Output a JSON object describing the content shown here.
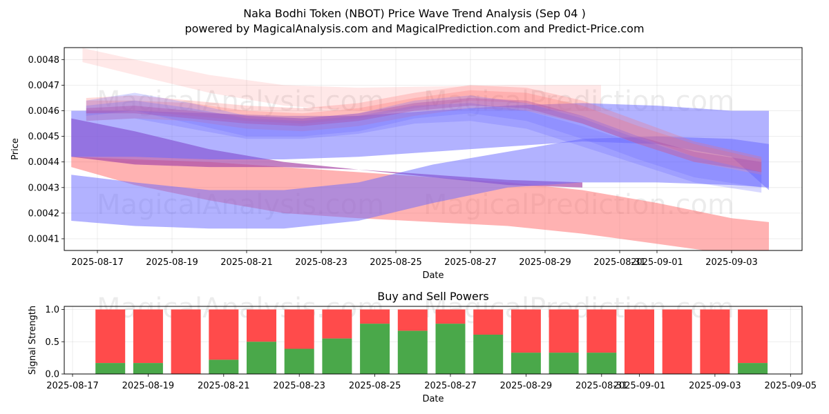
{
  "title_line1": "Naka Bodhi Token (NBOT) Price Wave Trend Analysis (Sep 04 )",
  "title_line2": "powered by MagicalAnalysis.com and MagicalPrediction.com and Predict-Price.com",
  "watermarks": [
    "MagicalAnalysis.com",
    "MagicalPrediction.com"
  ],
  "colors": {
    "buy": "#4aa84a",
    "sell": "#ff4b4b",
    "blue_wave": "#6666ff",
    "red_wave": "#ff6666"
  },
  "chart_data": [
    {
      "type": "area",
      "title": "",
      "xlabel": "Date",
      "ylabel": "Price",
      "xlim": [
        "2025-08-15.9",
        "2025-09-05.3"
      ],
      "ylim": [
        0.004055,
        0.00485
      ],
      "xtick_labels": [
        "2025-08-17",
        "2025-08-19",
        "2025-08-21",
        "2025-08-23",
        "2025-08-25",
        "2025-08-27",
        "2025-08-29",
        "2025-08-31",
        "2025-09-01",
        "2025-09-03"
      ],
      "ytick_labels": [
        "0.0041",
        "0.0042",
        "0.0043",
        "0.0044",
        "0.0045",
        "0.0046",
        "0.0047",
        "0.0048"
      ],
      "yticks": [
        0.0041,
        0.0042,
        0.0043,
        0.0044,
        0.0045,
        0.0046,
        0.0047,
        0.0048
      ],
      "bands": [
        {
          "name": "red-long-high",
          "color": "red",
          "opacity": 0.15,
          "x": [
            16.6,
            18.0,
            20.0,
            22.0,
            24.0,
            26.0,
            28.0,
            30.5
          ],
          "upper": [
            0.004845,
            0.0048,
            0.00474,
            0.0047,
            0.00469,
            0.004695,
            0.0047,
            0.0047
          ],
          "lower": [
            0.00479,
            0.00474,
            0.00467,
            0.00462,
            0.0046,
            0.0046,
            0.0046,
            0.0046
          ]
        },
        {
          "name": "red-long-low",
          "color": "red",
          "opacity": 0.5,
          "x": [
            16.3,
            18.0,
            20.0,
            22.0,
            24.0,
            26.0,
            28.0,
            30.0,
            32.0,
            34.0,
            35.0
          ],
          "upper": [
            0.00442,
            0.00441,
            0.0044,
            0.00438,
            0.00436,
            0.00434,
            0.00432,
            0.00429,
            0.00424,
            0.00418,
            0.004165
          ],
          "lower": [
            0.00438,
            0.00431,
            0.00425,
            0.0042,
            0.00418,
            0.004165,
            0.00415,
            0.00412,
            0.00408,
            0.00404,
            0.00403
          ]
        },
        {
          "name": "purple-long-down",
          "color": "purple",
          "opacity": 0.7,
          "x": [
            16.3,
            18.0,
            20.0,
            22.0,
            24.0,
            26.0,
            28.0,
            30.0
          ],
          "upper": [
            0.00457,
            0.00452,
            0.00445,
            0.0044,
            0.00437,
            0.00435,
            0.00433,
            0.00432
          ],
          "lower": [
            0.00442,
            0.00439,
            0.00438,
            0.00438,
            0.00437,
            0.00434,
            0.00431,
            0.0043
          ]
        },
        {
          "name": "blue-long-low",
          "color": "blue",
          "opacity": 0.5,
          "x": [
            16.3,
            18.0,
            20.0,
            22.0,
            24.0,
            26.0,
            28.0,
            30.0,
            32.0,
            34.0,
            35.0
          ],
          "upper": [
            0.00435,
            0.00432,
            0.00429,
            0.00429,
            0.00432,
            0.00439,
            0.00444,
            0.00449,
            0.0045,
            0.00449,
            0.00447
          ],
          "lower": [
            0.00417,
            0.00415,
            0.00414,
            0.00414,
            0.00417,
            0.00424,
            0.0043,
            0.00432,
            0.00432,
            0.00431,
            0.0043
          ]
        },
        {
          "name": "blue-long-high",
          "color": "blue",
          "opacity": 0.5,
          "x": [
            16.3,
            18.0,
            20.0,
            22.0,
            24.0,
            26.0,
            28.0,
            30.0,
            32.0,
            34.0,
            35.0
          ],
          "upper": [
            0.0046,
            0.0046,
            0.00459,
            0.00458,
            0.00458,
            0.0046,
            0.00462,
            0.00463,
            0.00462,
            0.0046,
            0.0046
          ],
          "lower": [
            0.00442,
            0.00442,
            0.00441,
            0.00441,
            0.00442,
            0.00444,
            0.00446,
            0.00448,
            0.00447,
            0.00442,
            0.00429
          ]
        },
        {
          "name": "red-wave-a",
          "color": "red",
          "opacity": 0.25,
          "x": [
            16.7,
            18.0,
            19.5,
            21.0,
            22.5,
            24.0,
            25.5,
            27.0,
            28.5,
            30.0,
            31.5,
            33.0,
            34.8
          ],
          "upper": [
            0.00465,
            0.00466,
            0.00464,
            0.00462,
            0.00461,
            0.00463,
            0.00467,
            0.0047,
            0.00469,
            0.00464,
            0.00456,
            0.00448,
            0.00442
          ],
          "lower": [
            0.00459,
            0.0046,
            0.00458,
            0.00456,
            0.00455,
            0.00457,
            0.00461,
            0.00464,
            0.00463,
            0.00458,
            0.0045,
            0.00442,
            0.00436
          ]
        },
        {
          "name": "red-wave-b",
          "color": "red",
          "opacity": 0.25,
          "x": [
            16.7,
            18.0,
            19.5,
            21.0,
            22.5,
            24.0,
            25.5,
            27.0,
            28.5,
            30.0,
            31.5,
            33.0,
            34.8
          ],
          "upper": [
            0.00464,
            0.00464,
            0.00463,
            0.0046,
            0.00459,
            0.00461,
            0.00465,
            0.00468,
            0.00467,
            0.00462,
            0.00454,
            0.00447,
            0.00441
          ],
          "lower": [
            0.00456,
            0.00457,
            0.00456,
            0.00453,
            0.00452,
            0.00454,
            0.00458,
            0.00461,
            0.0046,
            0.00455,
            0.00447,
            0.0044,
            0.00435
          ]
        },
        {
          "name": "blue-wave-a",
          "color": "blue",
          "opacity": 0.25,
          "x": [
            16.7,
            18.0,
            19.5,
            21.0,
            22.5,
            24.0,
            25.5,
            27.0,
            28.5,
            30.0,
            31.5,
            33.0,
            34.8
          ],
          "upper": [
            0.00464,
            0.00467,
            0.00463,
            0.00458,
            0.00457,
            0.00459,
            0.00464,
            0.00466,
            0.00463,
            0.00457,
            0.00449,
            0.00442,
            0.00436
          ],
          "lower": [
            0.00458,
            0.0046,
            0.00455,
            0.0045,
            0.0045,
            0.00452,
            0.00457,
            0.00459,
            0.00456,
            0.00449,
            0.00441,
            0.00434,
            0.0043
          ]
        },
        {
          "name": "blue-wave-b",
          "color": "blue",
          "opacity": 0.25,
          "x": [
            16.7,
            18.0,
            19.5,
            21.0,
            22.5,
            24.0,
            25.5,
            27.0,
            28.5,
            30.0,
            31.5,
            33.0,
            34.8
          ],
          "upper": [
            0.00462,
            0.00464,
            0.00461,
            0.00457,
            0.00456,
            0.00458,
            0.00462,
            0.00463,
            0.0046,
            0.00454,
            0.00447,
            0.0044,
            0.00435
          ],
          "lower": [
            0.00456,
            0.00457,
            0.00453,
            0.00449,
            0.00449,
            0.00451,
            0.00455,
            0.00456,
            0.00453,
            0.00446,
            0.00439,
            0.00432,
            0.00428
          ]
        },
        {
          "name": "purple-core",
          "color": "purple",
          "opacity": 0.35,
          "x": [
            16.7,
            18.0,
            19.5,
            21.0,
            22.5,
            24.0,
            25.5,
            27.0,
            28.5,
            30.0,
            31.5,
            33.0,
            34.8
          ],
          "upper": [
            0.00461,
            0.00462,
            0.0046,
            0.00458,
            0.00457,
            0.00459,
            0.00463,
            0.00465,
            0.00464,
            0.00458,
            0.0045,
            0.00444,
            0.0044
          ],
          "lower": [
            0.00459,
            0.00459,
            0.00457,
            0.00455,
            0.00454,
            0.00456,
            0.0046,
            0.00462,
            0.00461,
            0.00455,
            0.00447,
            0.0044,
            0.00436
          ]
        }
      ]
    },
    {
      "type": "bar",
      "title": "Buy and Sell Powers",
      "xlabel": "Date",
      "ylabel": "Signal Strength",
      "xlim": [
        "2025-08-16.8",
        "2025-09-05.2"
      ],
      "ylim": [
        0,
        1.05
      ],
      "ytick_labels": [
        "0.0",
        "0.5",
        "1.0"
      ],
      "yticks": [
        0.0,
        0.5,
        1.0
      ],
      "xtick_labels": [
        "2025-08-17",
        "2025-08-19",
        "2025-08-21",
        "2025-08-23",
        "2025-08-25",
        "2025-08-27",
        "2025-08-29",
        "2025-08-31",
        "2025-09-01",
        "2025-09-03",
        "2025-09-05"
      ],
      "categories": [
        "2025-08-18",
        "2025-08-19",
        "2025-08-20",
        "2025-08-21",
        "2025-08-22",
        "2025-08-23",
        "2025-08-24",
        "2025-08-25",
        "2025-08-26",
        "2025-08-27",
        "2025-08-28",
        "2025-08-29",
        "2025-08-30",
        "2025-08-31",
        "2025-09-01",
        "2025-09-02",
        "2025-09-03",
        "2025-09-04"
      ],
      "series": [
        {
          "name": "Buy",
          "values": [
            0.17,
            0.17,
            0.0,
            0.22,
            0.5,
            0.39,
            0.55,
            0.78,
            0.67,
            0.78,
            0.61,
            0.33,
            0.33,
            0.33,
            0.0,
            0.0,
            0.0,
            0.17
          ]
        },
        {
          "name": "Sell",
          "values": [
            0.83,
            0.83,
            1.0,
            0.78,
            0.5,
            0.61,
            0.45,
            0.22,
            0.33,
            0.22,
            0.39,
            0.67,
            0.67,
            0.67,
            1.0,
            1.0,
            1.0,
            0.83
          ]
        }
      ]
    }
  ]
}
